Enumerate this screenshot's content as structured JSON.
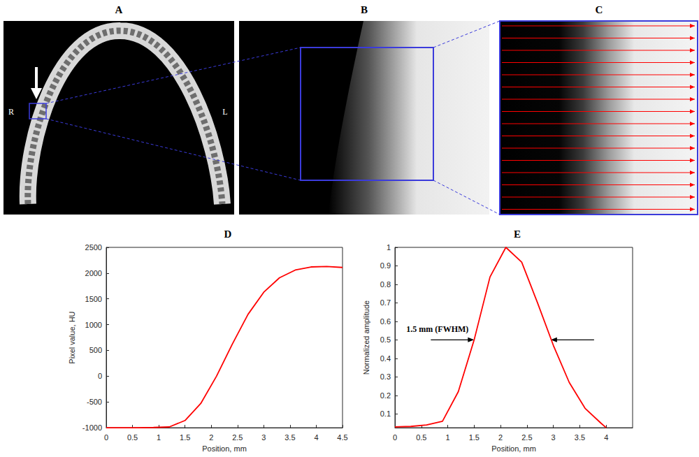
{
  "chart_data": [
    {
      "type": "line",
      "title": "D",
      "x": [
        0,
        0.3,
        0.6,
        0.9,
        1.2,
        1.5,
        1.8,
        2.1,
        2.4,
        2.7,
        3.0,
        3.3,
        3.6,
        3.9,
        4.2,
        4.5
      ],
      "values": [
        -1000,
        -1000,
        -1000,
        -995,
        -985,
        -860,
        -530,
        0,
        620,
        1200,
        1630,
        1910,
        2060,
        2120,
        2130,
        2110
      ],
      "color": "#ff0000",
      "xlabel": "Position, mm",
      "ylabel": "Pixel value, HU",
      "xlim": [
        0,
        4.5
      ],
      "ylim": [
        -1000,
        2500
      ],
      "xticks": [
        0,
        0.5,
        1,
        1.5,
        2,
        2.5,
        3,
        3.5,
        4,
        4.5
      ],
      "yticks": [
        -1000,
        -500,
        0,
        500,
        1000,
        1500,
        2000,
        2500
      ],
      "grid": false
    },
    {
      "type": "line",
      "title": "E",
      "x": [
        0,
        0.3,
        0.6,
        0.9,
        1.2,
        1.5,
        1.8,
        2.1,
        2.4,
        2.7,
        3.0,
        3.3,
        3.6,
        3.9,
        4.0
      ],
      "values": [
        0.03,
        0.032,
        0.04,
        0.06,
        0.22,
        0.5,
        0.84,
        1.0,
        0.92,
        0.7,
        0.47,
        0.27,
        0.13,
        0.05,
        0.025
      ],
      "color": "#ff0000",
      "xlabel": "Position, mm",
      "ylabel": "Normalized amplitude",
      "xlim": [
        0,
        4.5
      ],
      "ylim": [
        0.025,
        1
      ],
      "xticks": [
        0,
        0.5,
        1,
        1.5,
        2,
        2.5,
        3,
        3.5,
        4
      ],
      "yticks": [
        0.1,
        0.2,
        0.3,
        0.4,
        0.5,
        0.6,
        0.7,
        0.8,
        0.9,
        1
      ],
      "grid": false,
      "annotations": [
        {
          "text": "1.5 mm (FWHM)",
          "y": 0.5,
          "x": [
            1.5,
            2.95
          ]
        }
      ]
    }
  ],
  "images": [
    {
      "letter": "A",
      "labels": [
        "R",
        "L"
      ]
    },
    {
      "letter": "B"
    },
    {
      "letter": "C"
    }
  ]
}
